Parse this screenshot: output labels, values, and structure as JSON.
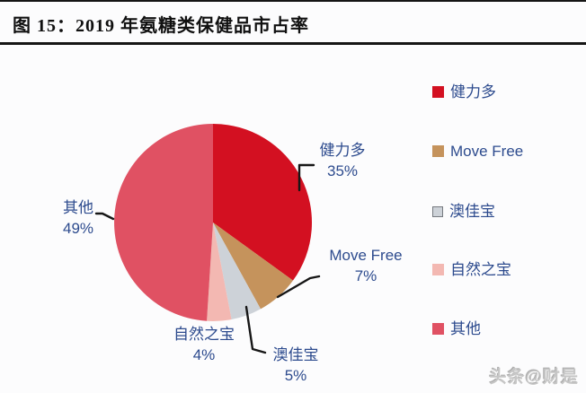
{
  "header": {
    "title": "图 15：2019 年氨糖类保健品市占率"
  },
  "chart_data": {
    "type": "pie",
    "title": "2019 年氨糖类保健品市占率",
    "start_angle_deg": 0,
    "direction": "clockwise",
    "legend_position": "right",
    "slices": [
      {
        "label": "健力多",
        "value": 35,
        "pct_text": "35%",
        "color": "#d31021"
      },
      {
        "label": "Move Free",
        "value": 7,
        "pct_text": "7%",
        "color": "#c5935c"
      },
      {
        "label": "澳佳宝",
        "value": 5,
        "pct_text": "5%",
        "color": "#cdd2d8"
      },
      {
        "label": "自然之宝",
        "value": 4,
        "pct_text": "4%",
        "color": "#f3b8b2"
      },
      {
        "label": "其他",
        "value": 49,
        "pct_text": "49%",
        "color": "#e05163"
      }
    ]
  },
  "watermark": {
    "text": "头条@财是"
  }
}
